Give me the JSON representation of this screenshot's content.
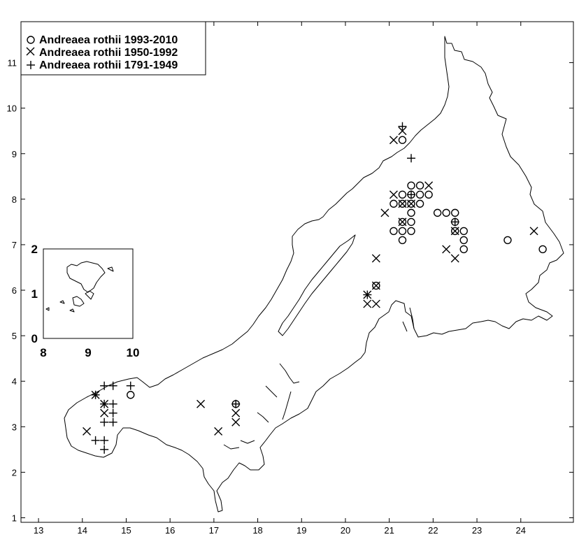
{
  "chart_data": {
    "type": "scatter",
    "title": "",
    "xlabel": "",
    "ylabel": "",
    "xlim": [
      12.6,
      25.2
    ],
    "ylim": [
      0.9,
      11.9
    ],
    "x_ticks": [
      "13",
      "14",
      "15",
      "16",
      "17",
      "18",
      "19",
      "20",
      "21",
      "22",
      "23",
      "24"
    ],
    "y_ticks": [
      "1",
      "2",
      "3",
      "4",
      "5",
      "6",
      "7",
      "8",
      "9",
      "10",
      "11"
    ],
    "legend_position": "top-left",
    "series": [
      {
        "name": "Andreaea rothii 1993-2010",
        "marker": "circle",
        "points": [
          [
            21.3,
            9.3
          ],
          [
            21.5,
            8.3
          ],
          [
            21.7,
            8.3
          ],
          [
            21.3,
            8.1
          ],
          [
            21.5,
            8.1
          ],
          [
            21.7,
            8.1
          ],
          [
            21.9,
            8.1
          ],
          [
            21.1,
            7.9
          ],
          [
            21.3,
            7.9
          ],
          [
            21.5,
            7.9
          ],
          [
            21.7,
            7.9
          ],
          [
            21.5,
            7.7
          ],
          [
            22.1,
            7.7
          ],
          [
            22.3,
            7.7
          ],
          [
            22.5,
            7.7
          ],
          [
            21.3,
            7.5
          ],
          [
            21.5,
            7.5
          ],
          [
            22.5,
            7.5
          ],
          [
            21.1,
            7.3
          ],
          [
            21.3,
            7.3
          ],
          [
            21.5,
            7.3
          ],
          [
            22.5,
            7.3
          ],
          [
            22.7,
            7.3
          ],
          [
            21.3,
            7.1
          ],
          [
            22.7,
            7.1
          ],
          [
            23.7,
            7.1
          ],
          [
            22.7,
            6.9
          ],
          [
            24.5,
            6.9
          ],
          [
            20.7,
            6.1
          ],
          [
            15.1,
            3.7
          ],
          [
            17.5,
            3.5
          ]
        ]
      },
      {
        "name": "Andreaea rothii 1950-1992",
        "marker": "x",
        "points": [
          [
            21.1,
            9.3
          ],
          [
            21.3,
            9.5
          ],
          [
            21.9,
            8.3
          ],
          [
            21.1,
            8.1
          ],
          [
            21.3,
            7.9
          ],
          [
            21.5,
            7.9
          ],
          [
            20.9,
            7.7
          ],
          [
            21.3,
            7.5
          ],
          [
            22.5,
            7.3
          ],
          [
            24.3,
            7.3
          ],
          [
            22.3,
            6.9
          ],
          [
            22.5,
            6.7
          ],
          [
            20.7,
            6.7
          ],
          [
            20.7,
            6.1
          ],
          [
            20.5,
            5.9
          ],
          [
            20.5,
            5.7
          ],
          [
            20.7,
            5.7
          ],
          [
            14.3,
            3.7
          ],
          [
            14.5,
            3.5
          ],
          [
            14.5,
            3.3
          ],
          [
            14.1,
            2.9
          ],
          [
            16.7,
            3.5
          ],
          [
            17.5,
            3.3
          ],
          [
            17.5,
            3.1
          ],
          [
            17.1,
            2.9
          ]
        ]
      },
      {
        "name": "Andreaea rothii 1791-1949",
        "marker": "plus",
        "points": [
          [
            21.3,
            9.6
          ],
          [
            21.5,
            8.9
          ],
          [
            21.5,
            8.1
          ],
          [
            22.5,
            7.5
          ],
          [
            20.5,
            5.9
          ],
          [
            15.1,
            3.9
          ],
          [
            14.5,
            3.9
          ],
          [
            14.7,
            3.9
          ],
          [
            14.3,
            3.7
          ],
          [
            14.5,
            3.5
          ],
          [
            14.7,
            3.5
          ],
          [
            14.7,
            3.3
          ],
          [
            14.5,
            3.1
          ],
          [
            14.7,
            3.1
          ],
          [
            14.3,
            2.7
          ],
          [
            14.5,
            2.7
          ],
          [
            14.5,
            2.5
          ],
          [
            17.5,
            3.5
          ]
        ]
      }
    ],
    "inset": {
      "x_ticks": [
        "8",
        "9",
        "10"
      ],
      "y_ticks": [
        "0",
        "1",
        "2"
      ],
      "xlim": [
        8,
        10
      ],
      "ylim": [
        0,
        2
      ]
    }
  },
  "colors": {
    "ink": "#000000",
    "background": "#ffffff"
  }
}
